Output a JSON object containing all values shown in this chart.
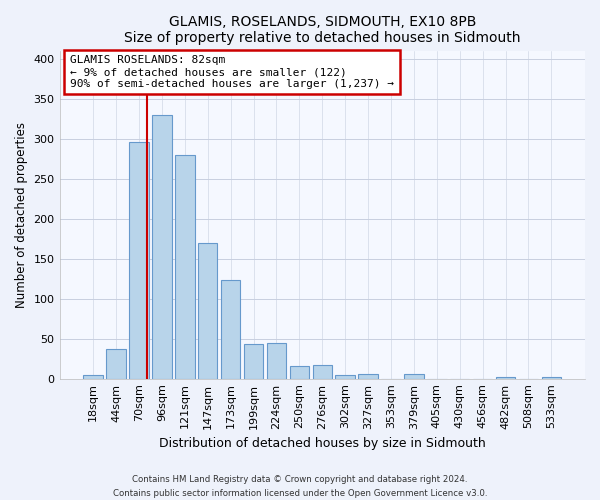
{
  "title": "GLAMIS, ROSELANDS, SIDMOUTH, EX10 8PB",
  "subtitle": "Size of property relative to detached houses in Sidmouth",
  "xlabel": "Distribution of detached houses by size in Sidmouth",
  "ylabel": "Number of detached properties",
  "bar_labels": [
    "18sqm",
    "44sqm",
    "70sqm",
    "96sqm",
    "121sqm",
    "147sqm",
    "173sqm",
    "199sqm",
    "224sqm",
    "250sqm",
    "276sqm",
    "302sqm",
    "327sqm",
    "353sqm",
    "379sqm",
    "405sqm",
    "430sqm",
    "456sqm",
    "482sqm",
    "508sqm",
    "533sqm"
  ],
  "bar_values": [
    5,
    37,
    296,
    329,
    279,
    170,
    123,
    43,
    45,
    16,
    17,
    5,
    6,
    0,
    6,
    0,
    0,
    0,
    2,
    0,
    2
  ],
  "bar_color": "#b8d4ea",
  "bar_edge_color": "#6699cc",
  "vline_x_index": 2.35,
  "vline_color": "#cc0000",
  "annotation_text": "GLAMIS ROSELANDS: 82sqm\n← 9% of detached houses are smaller (122)\n90% of semi-detached houses are larger (1,237) →",
  "annotation_box_color": "#ffffff",
  "annotation_box_edge": "#cc0000",
  "ylim": [
    0,
    410
  ],
  "yticks": [
    0,
    50,
    100,
    150,
    200,
    250,
    300,
    350,
    400
  ],
  "footer_line1": "Contains HM Land Registry data © Crown copyright and database right 2024.",
  "footer_line2": "Contains public sector information licensed under the Open Government Licence v3.0.",
  "bg_color": "#eef2fb",
  "plot_bg_color": "#f5f8ff",
  "grid_color": "#c8cfe0"
}
